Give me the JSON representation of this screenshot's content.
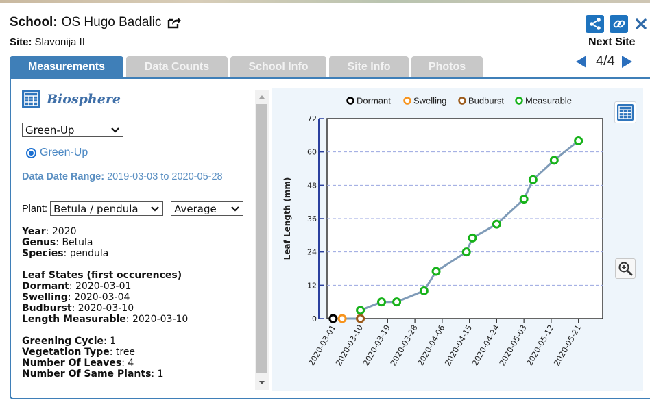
{
  "header": {
    "school_label": "School:",
    "school_name": "OS Hugo Badalic",
    "site_label": "Site:",
    "site_name": "Slavonija II",
    "next_site_label": "Next Site",
    "pager": "4/4"
  },
  "tabs": [
    {
      "label": "Measurements",
      "active": true
    },
    {
      "label": "Data Counts",
      "active": false
    },
    {
      "label": "School Info",
      "active": false
    },
    {
      "label": "Site Info",
      "active": false
    },
    {
      "label": "Photos",
      "active": false
    }
  ],
  "left": {
    "title": "Biosphere",
    "dataset_select": "Green-Up",
    "radio_label": "Green-Up",
    "range_label": "Data Date Range:",
    "range_value": "2019-03-03 to 2020-05-28",
    "plant_label": "Plant:",
    "plant_select": "Betula / pendula",
    "stat_select": "Average",
    "year_label": "Year",
    "year_value": "2020",
    "genus_label": "Genus",
    "genus_value": "Betula",
    "species_label": "Species",
    "species_value": "pendula",
    "leaf_states_heading": "Leaf States (first occurences)",
    "dormant_label": "Dormant",
    "dormant_value": "2020-03-01",
    "swelling_label": "Swelling",
    "swelling_value": "2020-03-04",
    "budburst_label": "Budburst",
    "budburst_value": "2020-03-10",
    "measurable_label": "Length Measurable",
    "measurable_value": "2020-03-10",
    "cycle_label": "Greening Cycle",
    "cycle_value": "1",
    "veg_label": "Vegetation Type",
    "veg_value": "tree",
    "leaves_label": "Number Of Leaves",
    "leaves_value": "4",
    "same_label": "Number Of Same Plants",
    "same_value": "1"
  },
  "colors": {
    "tab_active": "#3f7fb8",
    "tab_inactive": "#c8c8c8",
    "dormant": "#000000",
    "swelling": "#f7941d",
    "budburst": "#9b5a1a",
    "measurable": "#17b21a",
    "line": "#7f9bb8"
  },
  "chart_data": {
    "type": "line",
    "title": "",
    "xlabel": "",
    "ylabel": "Leaf Length (mm)",
    "ylim": [
      0,
      72
    ],
    "yticks": [
      0,
      12,
      24,
      36,
      48,
      60,
      72
    ],
    "xticks": [
      "2020-03-01",
      "2020-03-10",
      "2020-03-19",
      "2020-03-28",
      "2020-04-06",
      "2020-04-15",
      "2020-04-24",
      "2020-05-03",
      "2020-05-12",
      "2020-05-21"
    ],
    "xlim": [
      "2020-02-28",
      "2020-05-29"
    ],
    "grid": "horizontal dashed",
    "legend_position": "top",
    "legend": [
      {
        "name": "Dormant",
        "color": "#000000"
      },
      {
        "name": "Swelling",
        "color": "#f7941d"
      },
      {
        "name": "Budburst",
        "color": "#9b5a1a"
      },
      {
        "name": "Measurable",
        "color": "#17b21a"
      }
    ],
    "points": [
      {
        "x": "2020-03-01",
        "y": 0,
        "state": "Dormant"
      },
      {
        "x": "2020-03-04",
        "y": 0,
        "state": "Swelling"
      },
      {
        "x": "2020-03-10",
        "y": 0,
        "state": "Budburst"
      },
      {
        "x": "2020-03-10",
        "y": 3,
        "state": "Measurable"
      },
      {
        "x": "2020-03-17",
        "y": 6,
        "state": "Measurable"
      },
      {
        "x": "2020-03-22",
        "y": 6,
        "state": "Measurable"
      },
      {
        "x": "2020-03-31",
        "y": 10,
        "state": "Measurable"
      },
      {
        "x": "2020-04-04",
        "y": 17,
        "state": "Measurable"
      },
      {
        "x": "2020-04-14",
        "y": 24,
        "state": "Measurable"
      },
      {
        "x": "2020-04-16",
        "y": 29,
        "state": "Measurable"
      },
      {
        "x": "2020-04-24",
        "y": 34,
        "state": "Measurable"
      },
      {
        "x": "2020-05-03",
        "y": 43,
        "state": "Measurable"
      },
      {
        "x": "2020-05-06",
        "y": 50,
        "state": "Measurable"
      },
      {
        "x": "2020-05-13",
        "y": 57,
        "state": "Measurable"
      },
      {
        "x": "2020-05-21",
        "y": 64,
        "state": "Measurable"
      }
    ]
  }
}
